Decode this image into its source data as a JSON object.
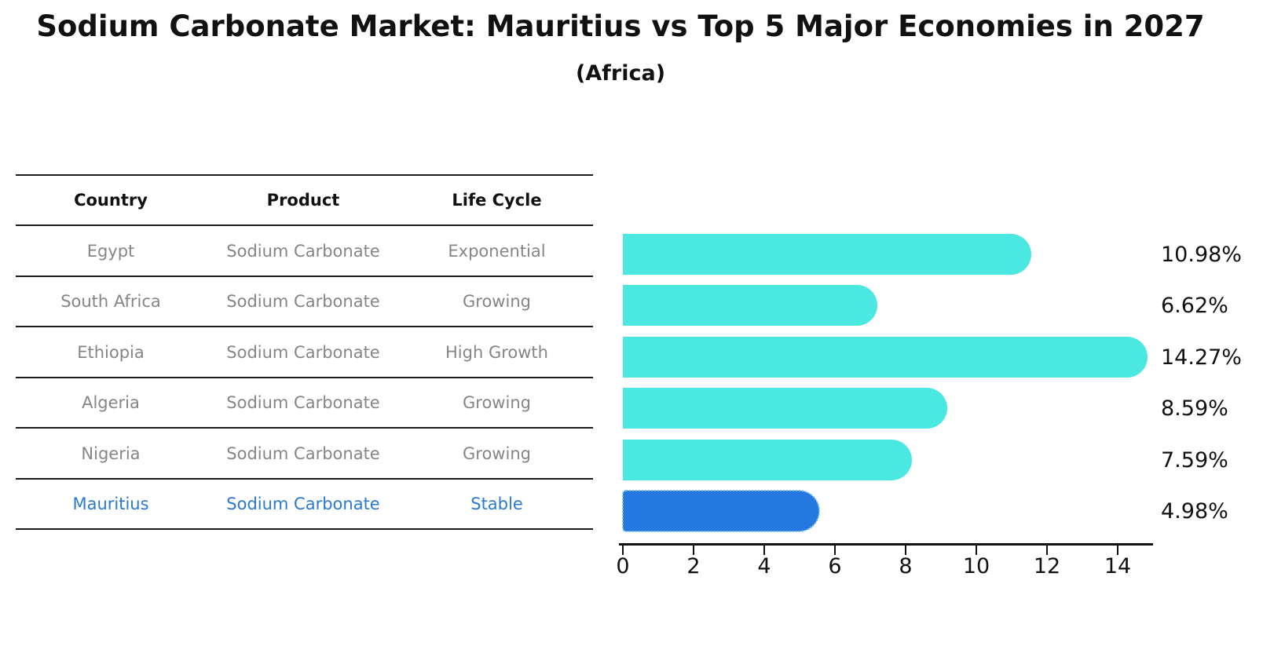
{
  "title": "Sodium Carbonate Market: Mauritius vs Top 5 Major Economies in 2027",
  "subtitle": "(Africa)",
  "table": {
    "headers": [
      "Country",
      "Product",
      "Life Cycle"
    ],
    "rows": [
      {
        "country": "Egypt",
        "product": "Sodium Carbonate",
        "life_cycle": "Exponential",
        "highlight": false
      },
      {
        "country": "South Africa",
        "product": "Sodium Carbonate",
        "life_cycle": "Growing",
        "highlight": false
      },
      {
        "country": "Ethiopia",
        "product": "Sodium Carbonate",
        "life_cycle": "High Growth",
        "highlight": false
      },
      {
        "country": "Algeria",
        "product": "Sodium Carbonate",
        "life_cycle": "Growing",
        "highlight": false
      },
      {
        "country": "Nigeria",
        "product": "Sodium Carbonate",
        "life_cycle": "Growing",
        "highlight": false
      },
      {
        "country": "Mauritius",
        "product": "Sodium Carbonate",
        "life_cycle": "Stable",
        "highlight": true
      }
    ]
  },
  "chart_data": {
    "type": "bar",
    "orientation": "horizontal",
    "title": "Sodium Carbonate Market: Mauritius vs Top 5 Major Economies in 2027",
    "subtitle": "(Africa)",
    "categories": [
      "Egypt",
      "South Africa",
      "Ethiopia",
      "Algeria",
      "Nigeria",
      "Mauritius"
    ],
    "values": [
      10.98,
      6.62,
      14.27,
      8.59,
      7.59,
      4.98
    ],
    "value_labels": [
      "10.98%",
      "6.62%",
      "14.27%",
      "8.59%",
      "7.59%",
      "4.98%"
    ],
    "xlim": [
      0,
      15
    ],
    "xticks": [
      0,
      2,
      4,
      6,
      8,
      10,
      12,
      14
    ],
    "grid": false,
    "legend": false,
    "bar_color": "#4BE8E2",
    "highlight_bar_color": "#2478E0",
    "highlight_index": 5,
    "highlight_category": "Mauritius"
  },
  "colors": {
    "accent_text": "#2979D2",
    "muted_text": "#858585",
    "heading_text": "#111111",
    "axis": "#111111",
    "background": "#FFFFFF"
  }
}
